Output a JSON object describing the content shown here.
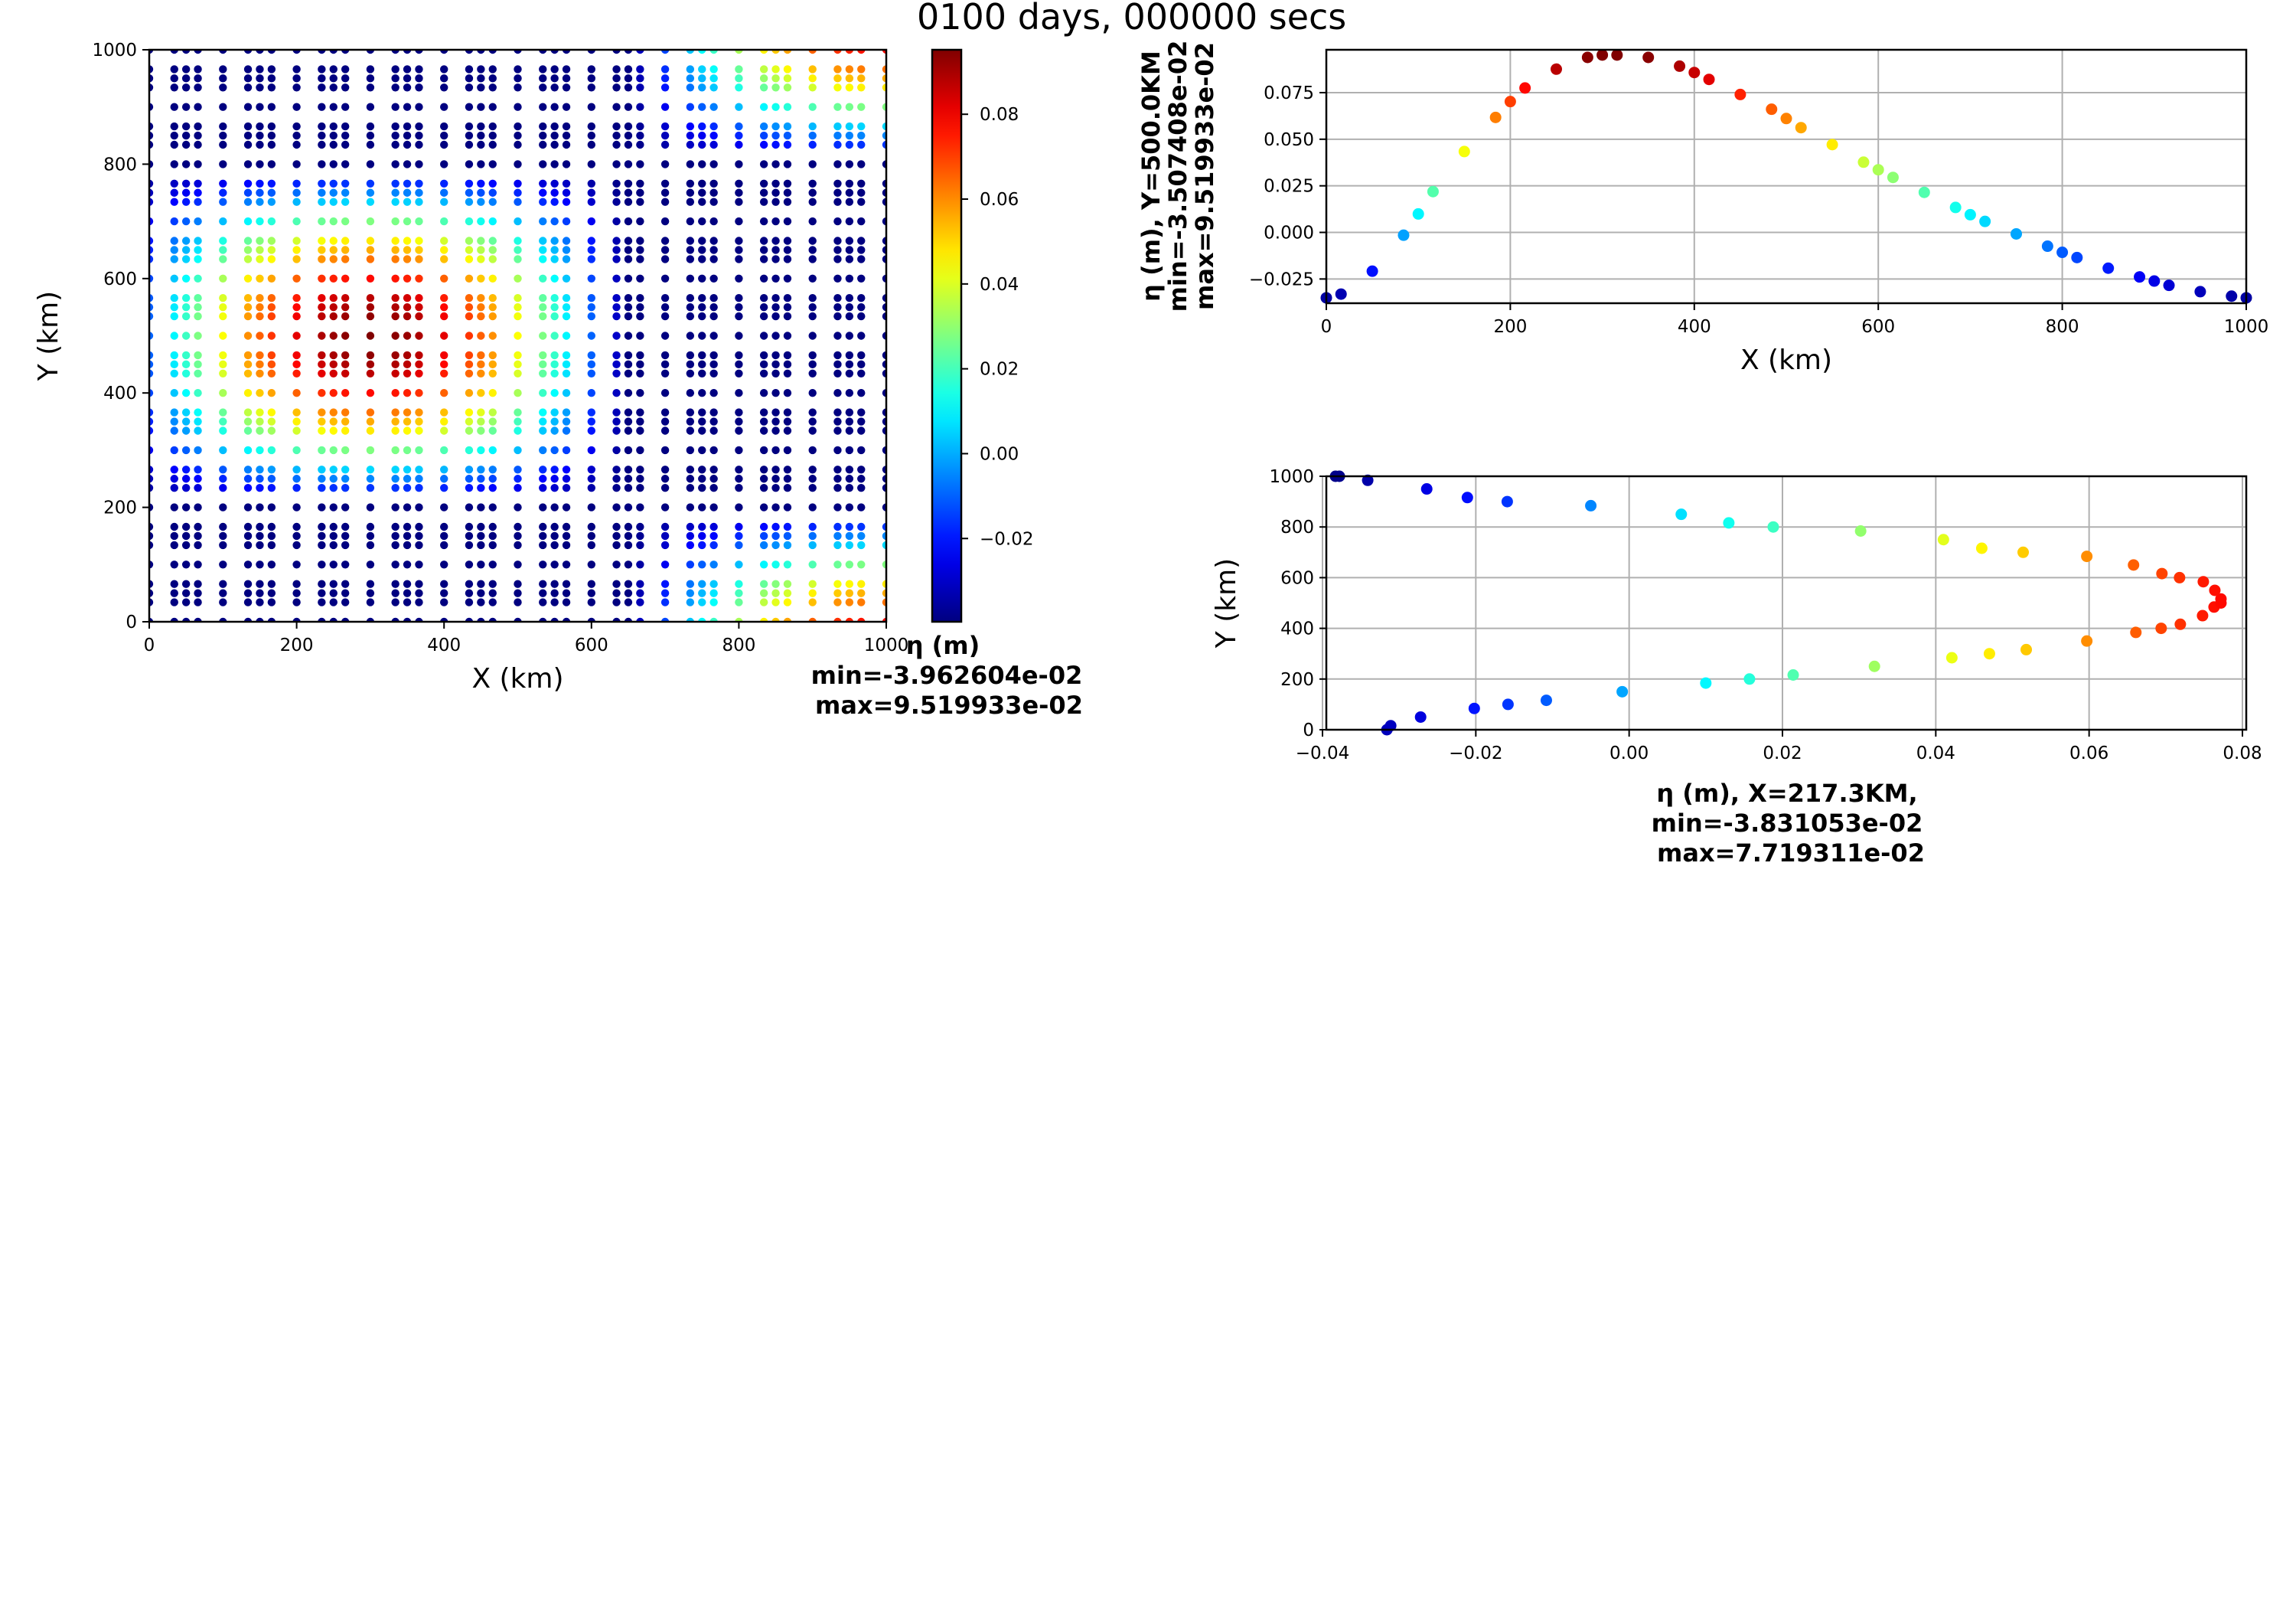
{
  "figure": {
    "title": "0100 days, 000000 secs"
  },
  "chart_data": [
    {
      "type": "scatter",
      "id": "map",
      "xlabel": "X (km)",
      "ylabel": "Y (km)",
      "xlim": [
        0,
        1000
      ],
      "ylim": [
        0,
        1000
      ],
      "xticks": [
        0,
        200,
        400,
        600,
        800,
        1000
      ],
      "yticks": [
        0,
        200,
        400,
        600,
        800,
        1000
      ],
      "grid": false,
      "colormap": "jet",
      "field": {
        "description_formula": "cosine-shaped bump peaking near X=300, Y=500, with 3x3 point clusters on a 50 km grid",
        "cluster_spacing_km": 50,
        "cluster_offsets_km": [
          -16,
          0,
          16
        ],
        "ring_points_only_near_edges": true
      }
    },
    {
      "type": "colorbar",
      "id": "colorbar",
      "vmin": -0.03962604,
      "vmax": 0.09519933,
      "ticks": [
        -0.02,
        0.0,
        0.02,
        0.04,
        0.06,
        0.08
      ],
      "tick_labels": [
        "−0.02",
        "0.00",
        "0.02",
        "0.04",
        "0.06",
        "0.08"
      ],
      "label": "η (m)",
      "min_text": "min=-3.962604e-02",
      "max_text": "max=9.519933e-02"
    },
    {
      "type": "scatter",
      "id": "section-y",
      "xlabel": "X (km)",
      "ylabel_lines": [
        "η (m), Y=500.0KM",
        "min=-3.507408e-02",
        "max=9.519933e-02"
      ],
      "xlim": [
        0,
        1000
      ],
      "ylim": [
        -0.038,
        0.098
      ],
      "xticks": [
        0,
        200,
        400,
        600,
        800,
        1000
      ],
      "yticks": [
        -0.025,
        0.0,
        0.025,
        0.05,
        0.075
      ],
      "ytick_labels": [
        "−0.025",
        "0.000",
        "0.025",
        "0.050",
        "0.075"
      ],
      "grid": true,
      "x": [
        0,
        16,
        50,
        84,
        100,
        116,
        150,
        184,
        200,
        216,
        250,
        284,
        300,
        316,
        350,
        384,
        400,
        416,
        450,
        484,
        500,
        516,
        550,
        584,
        600,
        616,
        650,
        684,
        700,
        716,
        750,
        784,
        800,
        816,
        850,
        884,
        900,
        916,
        950,
        984,
        1000
      ],
      "y": [
        -0.0351,
        -0.0331,
        -0.0208,
        -0.0015,
        0.0099,
        0.0219,
        0.0434,
        0.0617,
        0.0702,
        0.0775,
        0.0876,
        0.0939,
        0.0952,
        0.0952,
        0.0939,
        0.0892,
        0.0858,
        0.0821,
        0.074,
        0.0661,
        0.0611,
        0.0562,
        0.0471,
        0.0377,
        0.0336,
        0.0295,
        0.0215,
        0.0134,
        0.0095,
        0.0059,
        -0.0008,
        -0.0074,
        -0.0107,
        -0.0135,
        -0.0192,
        -0.0239,
        -0.0261,
        -0.0284,
        -0.0318,
        -0.0342,
        -0.0351
      ]
    },
    {
      "type": "scatter",
      "id": "section-x",
      "xlabel_lines": [
        "η (m), X=217.3KM,",
        "min=-3.831053e-02",
        " max=7.719311e-02"
      ],
      "ylabel": "Y (km)",
      "xlim": [
        -0.0395,
        0.0805
      ],
      "ylim": [
        0,
        1000
      ],
      "xticks": [
        -0.04,
        -0.02,
        0.0,
        0.02,
        0.04,
        0.06,
        0.08
      ],
      "xtick_labels": [
        "−0.04",
        "−0.02",
        "0.00",
        "0.02",
        "0.04",
        "0.06",
        "0.08"
      ],
      "yticks": [
        0,
        200,
        400,
        600,
        800,
        1000
      ],
      "grid": true,
      "x": [
        -0.0316,
        -0.0311,
        -0.0272,
        -0.0202,
        -0.0158,
        -0.0108,
        -0.0009,
        0.01,
        0.0157,
        0.0214,
        0.032,
        0.0421,
        0.047,
        0.0518,
        0.0597,
        0.0661,
        0.0694,
        0.0719,
        0.0748,
        0.0763,
        0.0772,
        0.0772,
        0.0764,
        0.0749,
        0.0718,
        0.0695,
        0.0658,
        0.0597,
        0.0514,
        0.046,
        0.041,
        0.0302,
        0.0188,
        0.013,
        0.0068,
        -0.005,
        -0.0159,
        -0.0211,
        -0.0264,
        -0.0341,
        -0.0378,
        -0.0383
      ],
      "y": [
        0,
        16,
        50,
        84,
        100,
        116,
        150,
        184,
        200,
        216,
        250,
        284,
        300,
        316,
        350,
        384,
        400,
        416,
        450,
        484,
        500,
        516,
        550,
        584,
        600,
        616,
        650,
        684,
        700,
        716,
        750,
        784,
        800,
        816,
        850,
        884,
        900,
        916,
        950,
        984,
        1000,
        1000
      ]
    }
  ]
}
